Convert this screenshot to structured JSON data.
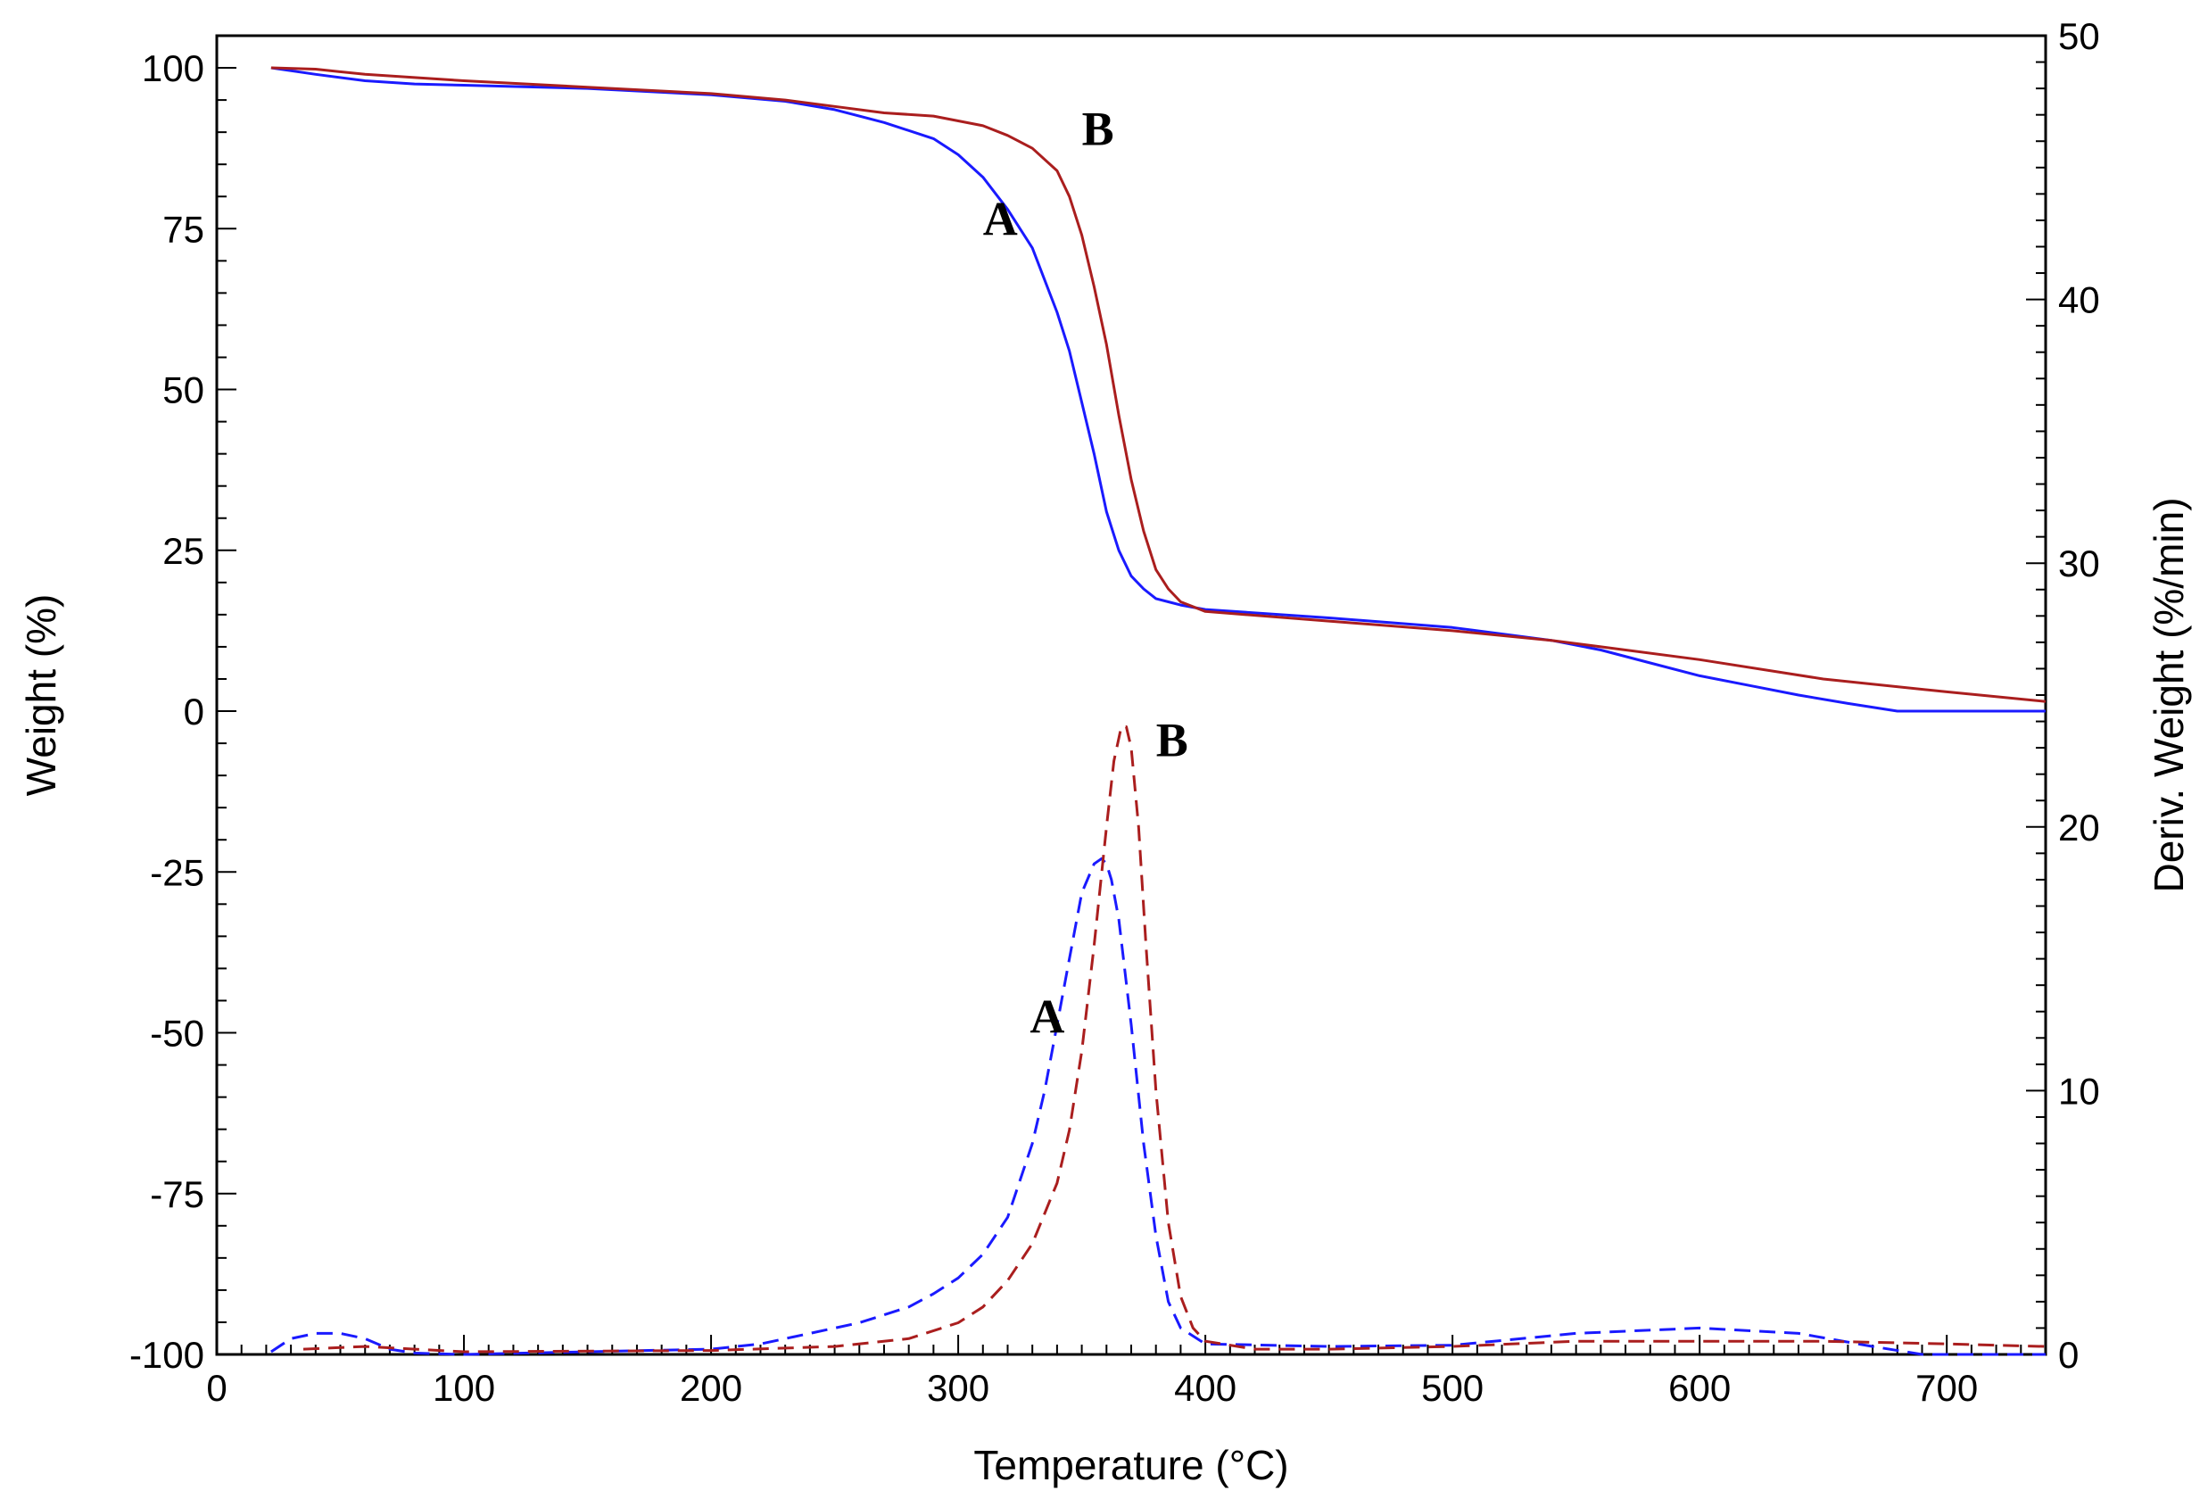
{
  "chart_data": {
    "type": "line",
    "xlabel": "Temperature (°C)",
    "ylabel": "Weight (%)",
    "y2label": "Deriv. Weight (%/min)",
    "xlim": [
      0,
      740
    ],
    "ylim": [
      -100,
      105
    ],
    "y2lim": [
      0,
      50
    ],
    "xticks": [
      0,
      100,
      200,
      300,
      400,
      500,
      600,
      700
    ],
    "yticks": [
      -100,
      -75,
      -50,
      -25,
      0,
      25,
      50,
      75,
      100
    ],
    "y2ticks": [
      0,
      10,
      20,
      30,
      40,
      50
    ],
    "grid": false,
    "legend": "none",
    "colors": {
      "A": "#1a1aff",
      "B": "#aa1e1e"
    },
    "series": [
      {
        "name": "A",
        "axis": "left",
        "style": "solid",
        "color": "#1a1aff",
        "x": [
          22,
          40,
          60,
          80,
          100,
          150,
          200,
          230,
          250,
          270,
          290,
          300,
          310,
          320,
          330,
          340,
          345,
          350,
          355,
          360,
          365,
          370,
          375,
          380,
          385,
          390,
          400,
          450,
          500,
          540,
          560,
          580,
          600,
          620,
          640,
          660,
          680,
          700,
          740
        ],
        "y": [
          100,
          99,
          98,
          97.5,
          97.3,
          96.8,
          95.8,
          94.8,
          93.5,
          91.5,
          89,
          86.5,
          83,
          78,
          72,
          62,
          56,
          48,
          40,
          31,
          25,
          21,
          19,
          17.5,
          17,
          16.5,
          15.8,
          14.5,
          13,
          11,
          9.5,
          7.5,
          5.5,
          4,
          2.5,
          1.2,
          0,
          0,
          0
        ]
      },
      {
        "name": "B",
        "axis": "left",
        "style": "solid",
        "color": "#aa1e1e",
        "x": [
          22,
          40,
          60,
          80,
          100,
          150,
          200,
          230,
          250,
          270,
          290,
          310,
          320,
          330,
          340,
          345,
          350,
          355,
          360,
          365,
          370,
          375,
          380,
          385,
          390,
          400,
          450,
          500,
          540,
          560,
          600,
          650,
          700,
          740
        ],
        "y": [
          100,
          99.8,
          99,
          98.5,
          98,
          97,
          96,
          95,
          94,
          93,
          92.5,
          91,
          89.5,
          87.5,
          84,
          80,
          74,
          66,
          57,
          46,
          36,
          28,
          22,
          19,
          17,
          15.5,
          14,
          12.5,
          11,
          10,
          8,
          5,
          3,
          1.5
        ]
      },
      {
        "name": "A",
        "axis": "right",
        "style": "dashed",
        "color": "#1a1aff",
        "x": [
          22,
          30,
          40,
          50,
          60,
          70,
          80,
          100,
          150,
          200,
          220,
          240,
          260,
          280,
          290,
          300,
          310,
          320,
          330,
          335,
          340,
          345,
          350,
          355,
          358,
          360,
          362,
          365,
          370,
          375,
          380,
          385,
          390,
          400,
          450,
          500,
          550,
          600,
          640,
          670,
          690,
          740
        ],
        "y": [
          0.1,
          0.6,
          0.8,
          0.8,
          0.6,
          0.2,
          0.05,
          0,
          0.1,
          0.2,
          0.4,
          0.8,
          1.2,
          1.8,
          2.3,
          2.9,
          3.8,
          5.2,
          8,
          10,
          12.5,
          15,
          17.5,
          18.6,
          18.8,
          18.6,
          18,
          16.5,
          12.5,
          8,
          4.5,
          2,
          1,
          0.4,
          0.3,
          0.35,
          0.8,
          1,
          0.8,
          0.3,
          0,
          0
        ]
      },
      {
        "name": "B",
        "axis": "right",
        "style": "dashed",
        "color": "#aa1e1e",
        "x": [
          35,
          60,
          100,
          200,
          250,
          280,
          300,
          310,
          320,
          330,
          340,
          345,
          350,
          355,
          360,
          363,
          366,
          368,
          370,
          373,
          376,
          380,
          385,
          390,
          395,
          400,
          420,
          450,
          500,
          550,
          600,
          650,
          700,
          740
        ],
        "y": [
          0.2,
          0.3,
          0.1,
          0.15,
          0.3,
          0.6,
          1.2,
          1.8,
          2.8,
          4.2,
          6.5,
          8.5,
          11.5,
          15.5,
          20,
          22.5,
          23.8,
          23.8,
          23,
          20,
          15.5,
          10,
          5,
          2.2,
          1,
          0.5,
          0.2,
          0.2,
          0.3,
          0.5,
          0.5,
          0.5,
          0.4,
          0.3
        ]
      }
    ]
  },
  "annotations": [
    {
      "text": "B",
      "x": 350,
      "y": 88
    },
    {
      "text": "A",
      "x": 310,
      "y": 74
    },
    {
      "text": "B",
      "x": 380,
      "y": -7
    },
    {
      "text": "A",
      "x": 329,
      "y": -50
    }
  ]
}
